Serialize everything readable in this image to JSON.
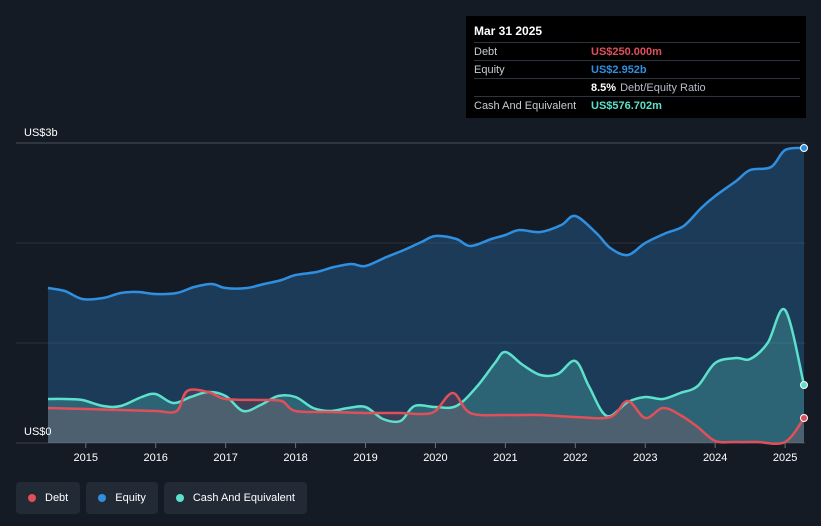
{
  "chart_data": {
    "type": "area",
    "title": "",
    "xlabel": "",
    "ylabel": "",
    "y_top_label": "US$3b",
    "y_bottom_label": "US$0",
    "ylim": [
      0,
      3.0
    ],
    "xlim": [
      2014.46,
      2025.27
    ],
    "x_ticks": [
      2015,
      2016,
      2017,
      2018,
      2019,
      2020,
      2021,
      2022,
      2023,
      2024,
      2025
    ],
    "gridlines": [
      1.0,
      2.0,
      3.0
    ],
    "series": [
      {
        "name": "Equity",
        "color": "#2f8fe0",
        "x": [
          2014.46,
          2014.7,
          2014.95,
          2015.25,
          2015.5,
          2015.75,
          2016.0,
          2016.3,
          2016.55,
          2016.8,
          2017.0,
          2017.3,
          2017.55,
          2017.8,
          2018.0,
          2018.3,
          2018.55,
          2018.8,
          2019.0,
          2019.3,
          2019.55,
          2019.8,
          2020.0,
          2020.3,
          2020.5,
          2020.8,
          2021.0,
          2021.2,
          2021.5,
          2021.8,
          2022.0,
          2022.3,
          2022.5,
          2022.75,
          2023.0,
          2023.3,
          2023.55,
          2023.8,
          2024.0,
          2024.3,
          2024.5,
          2024.8,
          2025.0,
          2025.27
        ],
        "values": [
          1.55,
          1.52,
          1.44,
          1.45,
          1.5,
          1.51,
          1.49,
          1.5,
          1.56,
          1.59,
          1.55,
          1.55,
          1.59,
          1.63,
          1.68,
          1.71,
          1.76,
          1.79,
          1.77,
          1.86,
          1.93,
          2.01,
          2.07,
          2.04,
          1.97,
          2.04,
          2.08,
          2.13,
          2.11,
          2.18,
          2.27,
          2.1,
          1.95,
          1.88,
          2.0,
          2.1,
          2.17,
          2.35,
          2.47,
          2.62,
          2.73,
          2.76,
          2.93,
          2.95
        ]
      },
      {
        "name": "Cash And Equivalent",
        "color": "#5de0cc",
        "x": [
          2014.46,
          2014.7,
          2014.95,
          2015.25,
          2015.5,
          2015.8,
          2016.0,
          2016.25,
          2016.5,
          2016.75,
          2017.0,
          2017.25,
          2017.5,
          2017.75,
          2018.0,
          2018.25,
          2018.5,
          2018.75,
          2019.0,
          2019.25,
          2019.5,
          2019.7,
          2020.0,
          2020.3,
          2020.6,
          2020.85,
          2021.0,
          2021.25,
          2021.5,
          2021.75,
          2022.0,
          2022.2,
          2022.45,
          2022.75,
          2023.0,
          2023.25,
          2023.5,
          2023.75,
          2024.0,
          2024.3,
          2024.5,
          2024.75,
          2025.0,
          2025.27
        ],
        "values": [
          0.44,
          0.44,
          0.43,
          0.37,
          0.37,
          0.46,
          0.49,
          0.4,
          0.46,
          0.51,
          0.47,
          0.32,
          0.38,
          0.47,
          0.46,
          0.35,
          0.32,
          0.35,
          0.36,
          0.24,
          0.22,
          0.37,
          0.36,
          0.37,
          0.57,
          0.8,
          0.91,
          0.78,
          0.68,
          0.69,
          0.82,
          0.56,
          0.27,
          0.41,
          0.46,
          0.44,
          0.5,
          0.57,
          0.8,
          0.85,
          0.84,
          1.0,
          1.33,
          0.58
        ]
      },
      {
        "name": "Debt",
        "color": "#e0505a",
        "x": [
          2014.46,
          2015.0,
          2015.5,
          2016.0,
          2016.3,
          2016.45,
          2016.75,
          2017.0,
          2017.5,
          2017.8,
          2018.0,
          2018.5,
          2019.0,
          2019.5,
          2019.8,
          2020.0,
          2020.25,
          2020.5,
          2021.0,
          2021.5,
          2022.0,
          2022.5,
          2022.75,
          2023.0,
          2023.25,
          2023.5,
          2023.75,
          2024.0,
          2024.3,
          2024.6,
          2025.0,
          2025.27
        ],
        "values": [
          0.35,
          0.34,
          0.33,
          0.32,
          0.32,
          0.52,
          0.51,
          0.44,
          0.43,
          0.42,
          0.32,
          0.31,
          0.3,
          0.3,
          0.29,
          0.32,
          0.5,
          0.3,
          0.28,
          0.28,
          0.26,
          0.26,
          0.42,
          0.25,
          0.35,
          0.28,
          0.16,
          0.02,
          0.01,
          0.01,
          0.01,
          0.25
        ]
      }
    ]
  },
  "tooltip": {
    "date": "Mar 31 2025",
    "debt_label": "Debt",
    "debt_value": "US$250.000m",
    "equity_label": "Equity",
    "equity_value": "US$2.952b",
    "ratio_value": "8.5%",
    "ratio_label": "Debt/Equity Ratio",
    "cash_label": "Cash And Equivalent",
    "cash_value": "US$576.702m"
  },
  "legend": {
    "debt": "Debt",
    "equity": "Equity",
    "cash": "Cash And Equivalent"
  },
  "colors": {
    "debt": "#e0505a",
    "equity": "#2f8fe0",
    "cash": "#5de0cc"
  }
}
